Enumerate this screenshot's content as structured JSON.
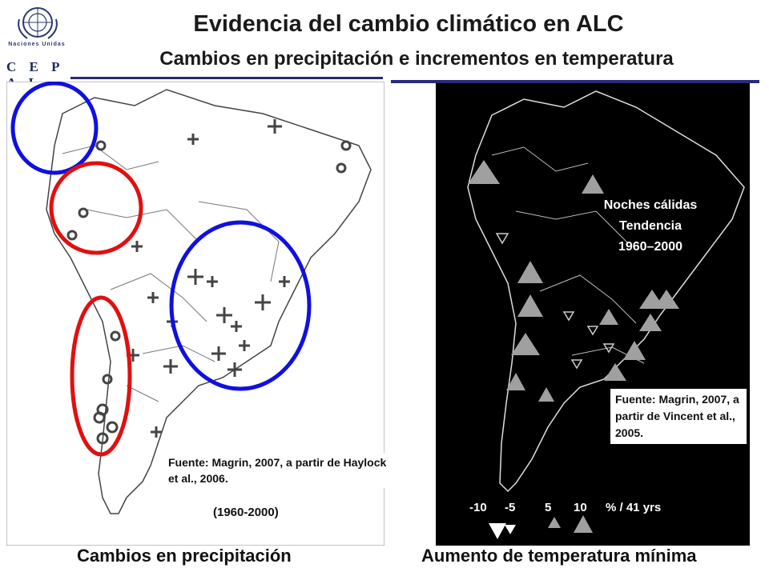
{
  "header": {
    "title": "Evidencia del cambio climático en ALC",
    "subtitle": "Cambios en precipitación e incrementos en temperatura",
    "org_small": "Naciones Unidas",
    "org_logo": "C E P A L"
  },
  "left_map": {
    "source": "Fuente: Magrin, 2007, a partir de Haylock et al., 2006.",
    "period": "(1960-2000)",
    "caption": "Cambios en precipitación",
    "highlight_colors": {
      "increase": "#1010e0",
      "decrease": "#e01010"
    }
  },
  "right_map": {
    "legend_title_1": "Noches cálidas",
    "legend_title_2": "Tendencia",
    "legend_title_3": "1960–2000",
    "source": "Fuente: Magrin, 2007, a partir de Vincent et al., 2005.",
    "caption": "Aumento de temperatura mínima",
    "scale": [
      {
        "label": "-10",
        "symbol": "large-down-triangle"
      },
      {
        "label": "-5",
        "symbol": "small-down-triangle"
      },
      {
        "label": "5",
        "symbol": "small-up-triangle"
      },
      {
        "label": "10",
        "symbol": "large-up-triangle"
      }
    ],
    "scale_unit": "% / 41 yrs"
  }
}
